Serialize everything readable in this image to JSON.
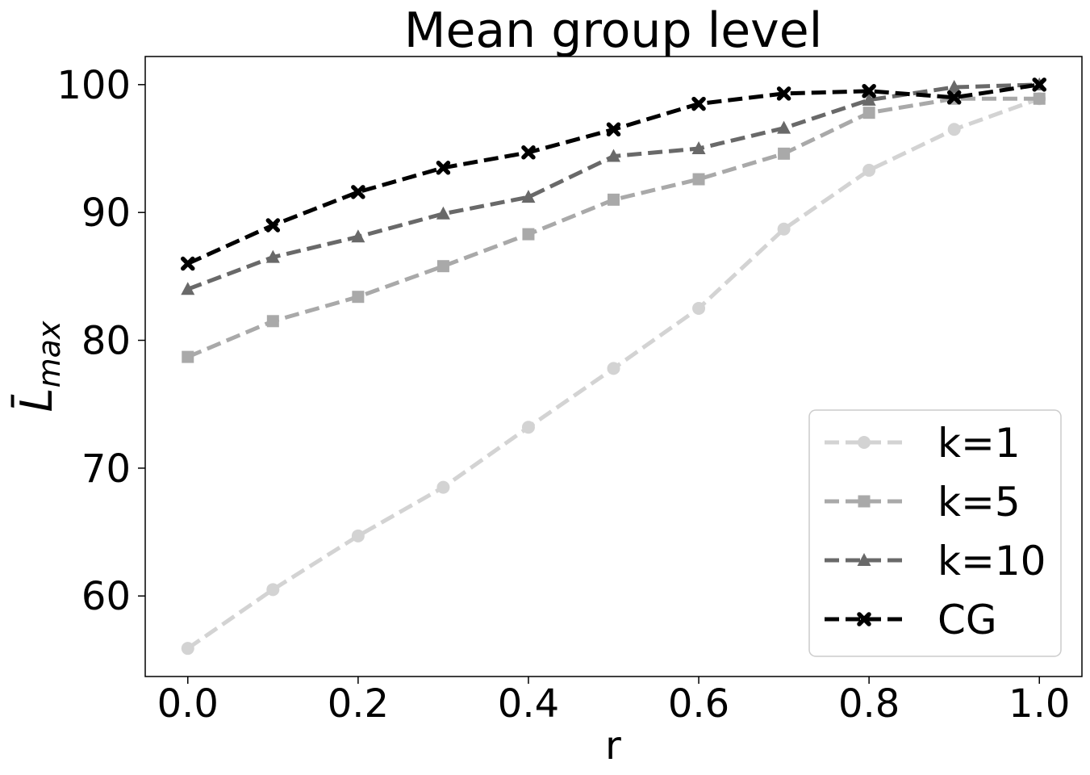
{
  "chart_data": {
    "type": "line",
    "title": "Mean group level",
    "xlabel": "r",
    "ylabel": "L̄",
    "ylabel_sub": "max",
    "x": [
      0.0,
      0.1,
      0.2,
      0.3,
      0.4,
      0.5,
      0.6,
      0.7,
      0.8,
      0.9,
      1.0
    ],
    "xticks": [
      0.0,
      0.2,
      0.4,
      0.6,
      0.8,
      1.0
    ],
    "xtick_labels": [
      "0.0",
      "0.2",
      "0.4",
      "0.6",
      "0.8",
      "1.0"
    ],
    "yticks": [
      60,
      70,
      80,
      90,
      100
    ],
    "ytick_labels": [
      "60",
      "70",
      "80",
      "90",
      "100"
    ],
    "xlim": [
      -0.05,
      1.05
    ],
    "ylim": [
      53.7,
      102.2
    ],
    "grid": false,
    "legend_position": "lower-right",
    "series": [
      {
        "name": "k=1",
        "marker": "circle",
        "color": "#d3d3d3",
        "values": [
          55.9,
          60.5,
          64.7,
          68.5,
          73.2,
          77.8,
          82.5,
          88.7,
          93.3,
          96.5,
          98.9
        ]
      },
      {
        "name": "k=5",
        "marker": "square",
        "color": "#a9a9a9",
        "values": [
          78.7,
          81.5,
          83.4,
          85.8,
          88.3,
          91.0,
          92.6,
          94.6,
          97.8,
          98.9,
          98.9
        ]
      },
      {
        "name": "k=10",
        "marker": "triangle",
        "color": "#696969",
        "values": [
          84.0,
          86.5,
          88.1,
          89.9,
          91.2,
          94.4,
          95.0,
          96.6,
          98.8,
          99.8,
          100.0
        ]
      },
      {
        "name": "CG",
        "marker": "x",
        "color": "#000000",
        "values": [
          86.0,
          89.0,
          91.6,
          93.5,
          94.7,
          96.5,
          98.5,
          99.3,
          99.5,
          99.0,
          100.0
        ]
      }
    ]
  }
}
